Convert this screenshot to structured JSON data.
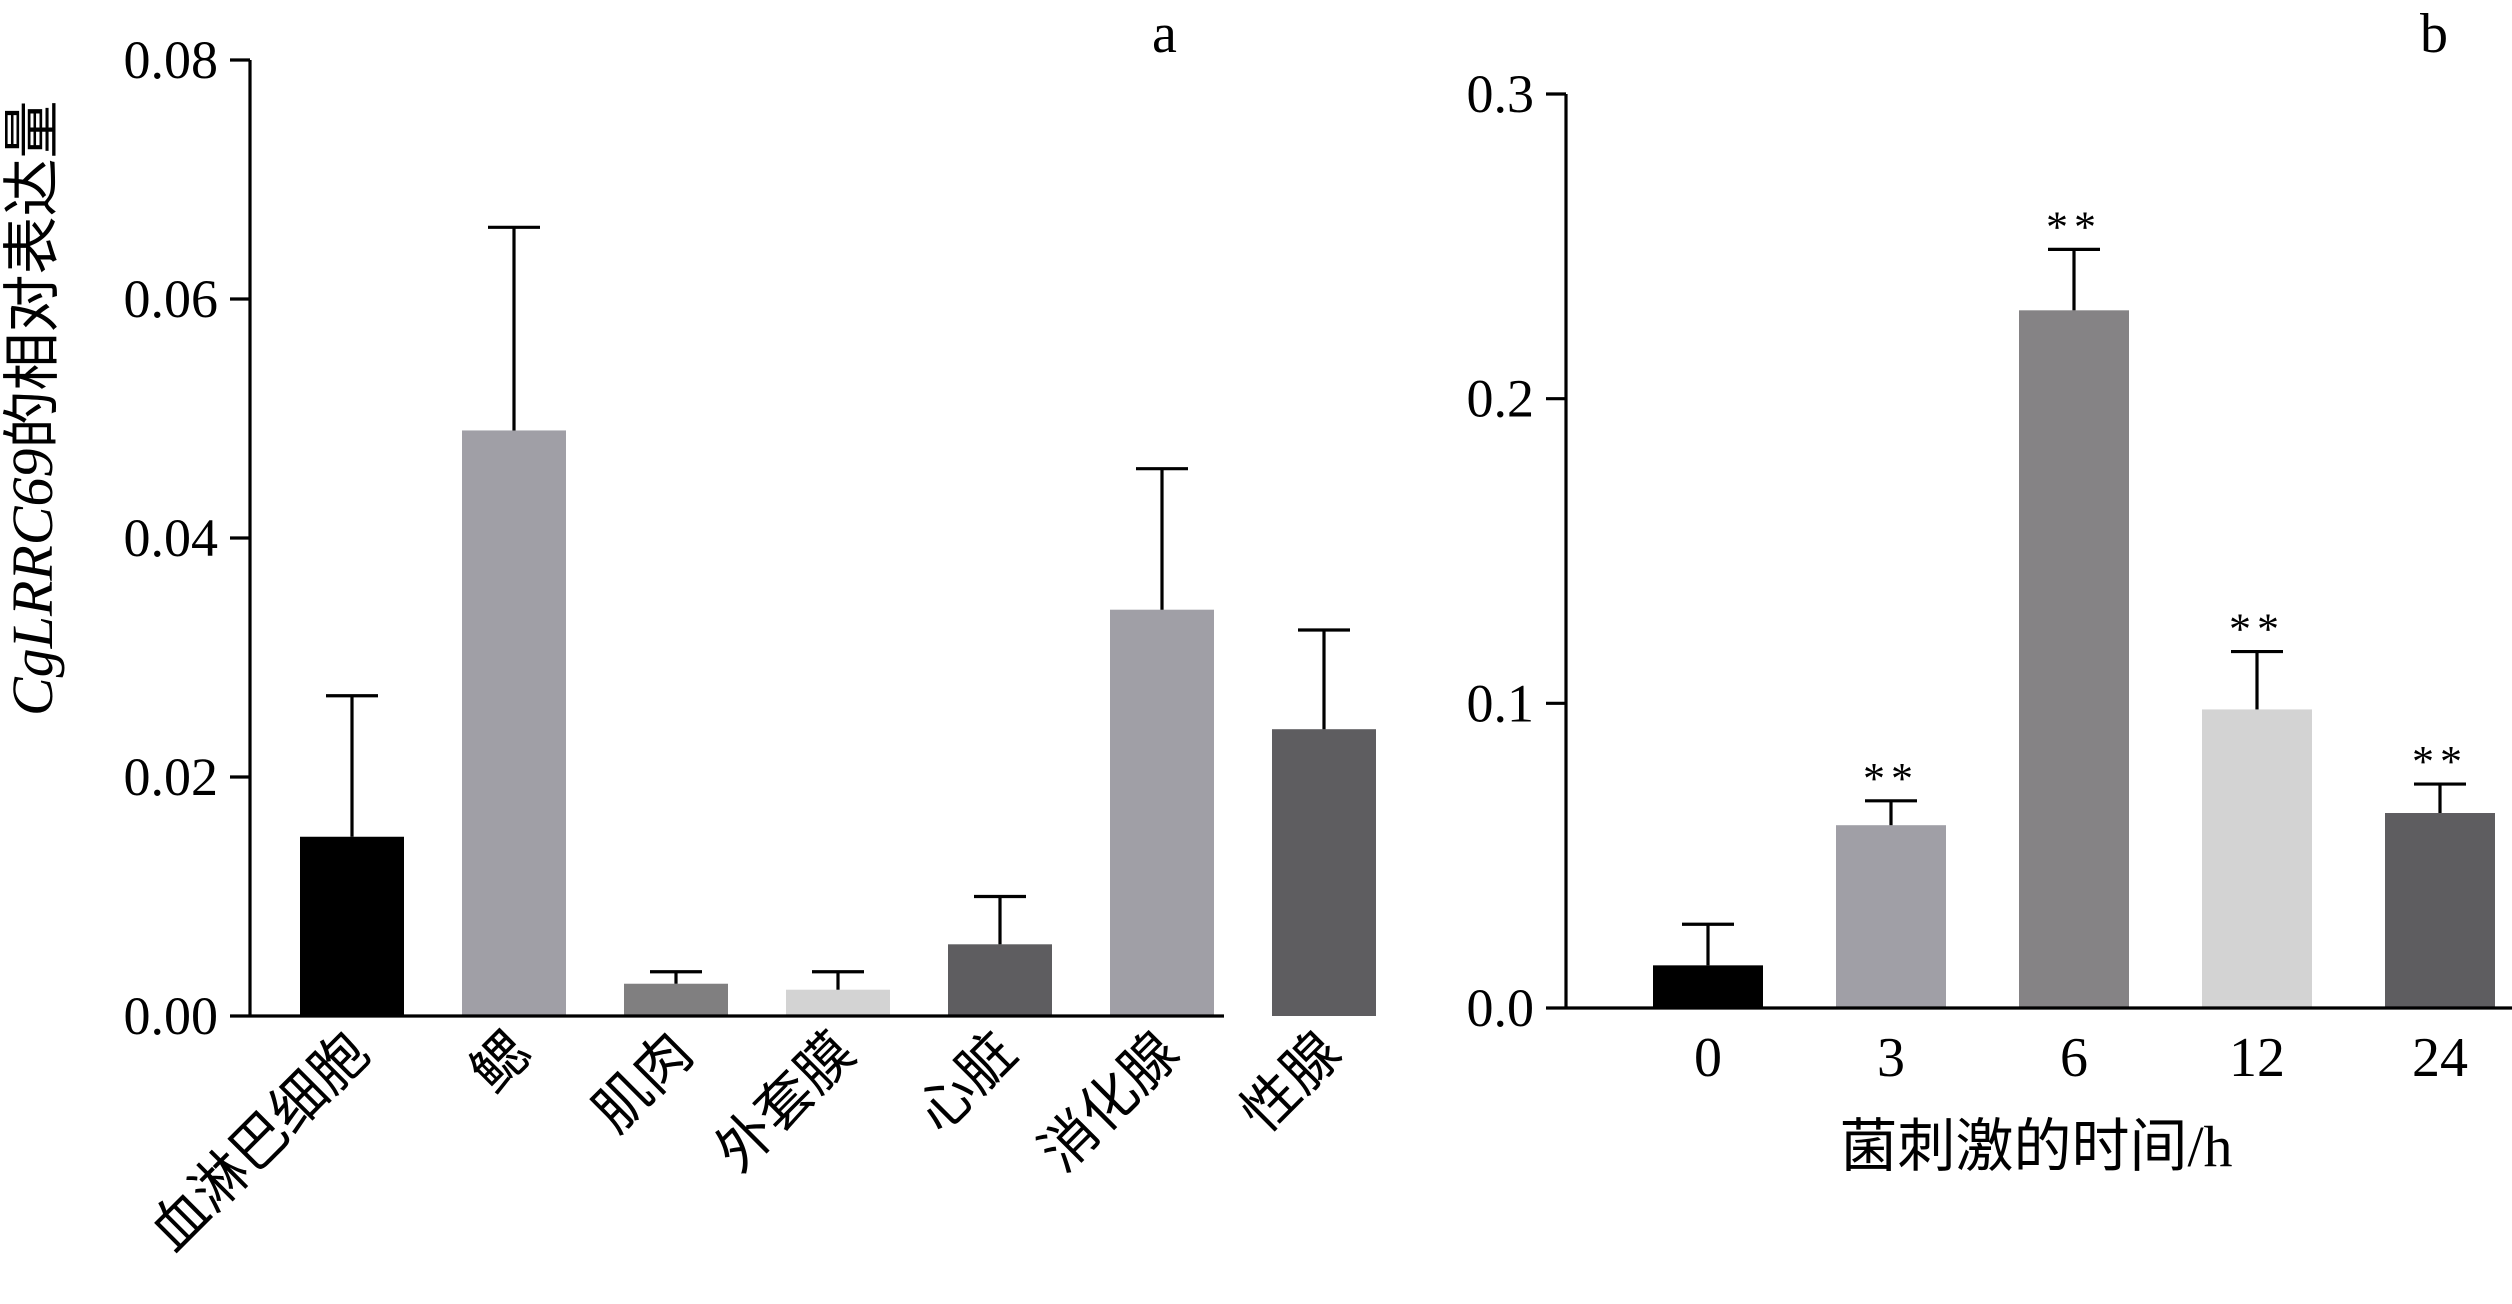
{
  "chart_data": [
    {
      "type": "bar",
      "panel_label": "a",
      "title": "",
      "xlabel": "",
      "ylabel": {
        "italic": "CgLRRC69",
        "text": "的相对表达量"
      },
      "ylim": [
        0,
        0.08
      ],
      "yticks": [
        "0.00",
        "0.02",
        "0.04",
        "0.06",
        "0.08"
      ],
      "categories": [
        "血淋巴细胞",
        "鳃",
        "肌肉",
        "外套膜",
        "心脏",
        "消化腺",
        "性腺"
      ],
      "values": [
        0.015,
        0.049,
        0.0027,
        0.0022,
        0.006,
        0.034,
        0.024
      ],
      "errors": [
        0.0118,
        0.017,
        0.001,
        0.0015,
        0.004,
        0.0118,
        0.0083
      ],
      "colors": [
        "#000000",
        "#a09fa6",
        "#807f80",
        "#d3d3d3",
        "#5e5d60",
        "#a09fa6",
        "#5e5d60"
      ],
      "grid": false,
      "legend": "none"
    },
    {
      "type": "bar",
      "panel_label": "b",
      "title": "",
      "xlabel": "菌刺激的时间/h",
      "ylabel": "",
      "ylim": [
        0,
        0.3
      ],
      "yticks": [
        "0.0",
        "0.1",
        "0.2",
        "0.3"
      ],
      "categories": [
        "0",
        "3",
        "6",
        "12",
        "24"
      ],
      "values": [
        0.014,
        0.06,
        0.229,
        0.098,
        0.064
      ],
      "errors": [
        0.0135,
        0.008,
        0.02,
        0.019,
        0.0095
      ],
      "significance": [
        "",
        "**",
        "**",
        "**",
        "**"
      ],
      "colors": [
        "#000000",
        "#a09fa6",
        "#858385",
        "#d3d3d3",
        "#5e5d60"
      ],
      "grid": false,
      "legend": "none"
    }
  ]
}
